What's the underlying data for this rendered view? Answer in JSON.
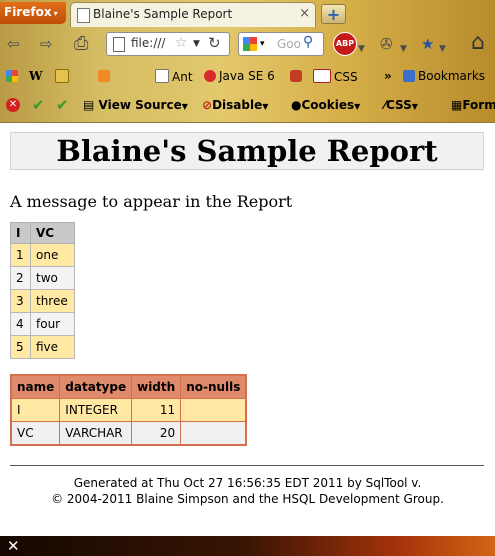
{
  "browser": {
    "app_menu_label": "Firefox",
    "tab_title": "Blaine's Sample Report",
    "new_tab_label": "+",
    "url": "file:///",
    "search_placeholder": "Goo",
    "abp_label": "ABP"
  },
  "bookmarks": {
    "items": [
      "W",
      "Ant",
      "Java SE 6",
      "CSS",
      "Bookmarks"
    ],
    "overflow": "»"
  },
  "devtoolbar": {
    "view_source": "View Source",
    "disable": "Disable",
    "cookies": "Cookies",
    "css": "CSS",
    "forms": "Form"
  },
  "report": {
    "title": "Blaine's Sample Report",
    "message": "A message to appear in the Report",
    "table1": {
      "headers": [
        "I",
        "VC"
      ],
      "rows": [
        [
          "1",
          "one"
        ],
        [
          "2",
          "two"
        ],
        [
          "3",
          "three"
        ],
        [
          "4",
          "four"
        ],
        [
          "5",
          "five"
        ]
      ]
    },
    "table2": {
      "headers": [
        "name",
        "datatype",
        "width",
        "no-nulls"
      ],
      "rows": [
        [
          "I",
          "INTEGER",
          "11",
          ""
        ],
        [
          "VC",
          "VARCHAR",
          "20",
          ""
        ]
      ]
    },
    "footer_line1": "Generated at Thu Oct 27 16:56:35 EDT 2011 by SqlTool v.",
    "footer_line2": "© 2004-2011 Blaine Simpson and the HSQL Development Group."
  },
  "statusbar": {
    "close_glyph": "✕"
  }
}
